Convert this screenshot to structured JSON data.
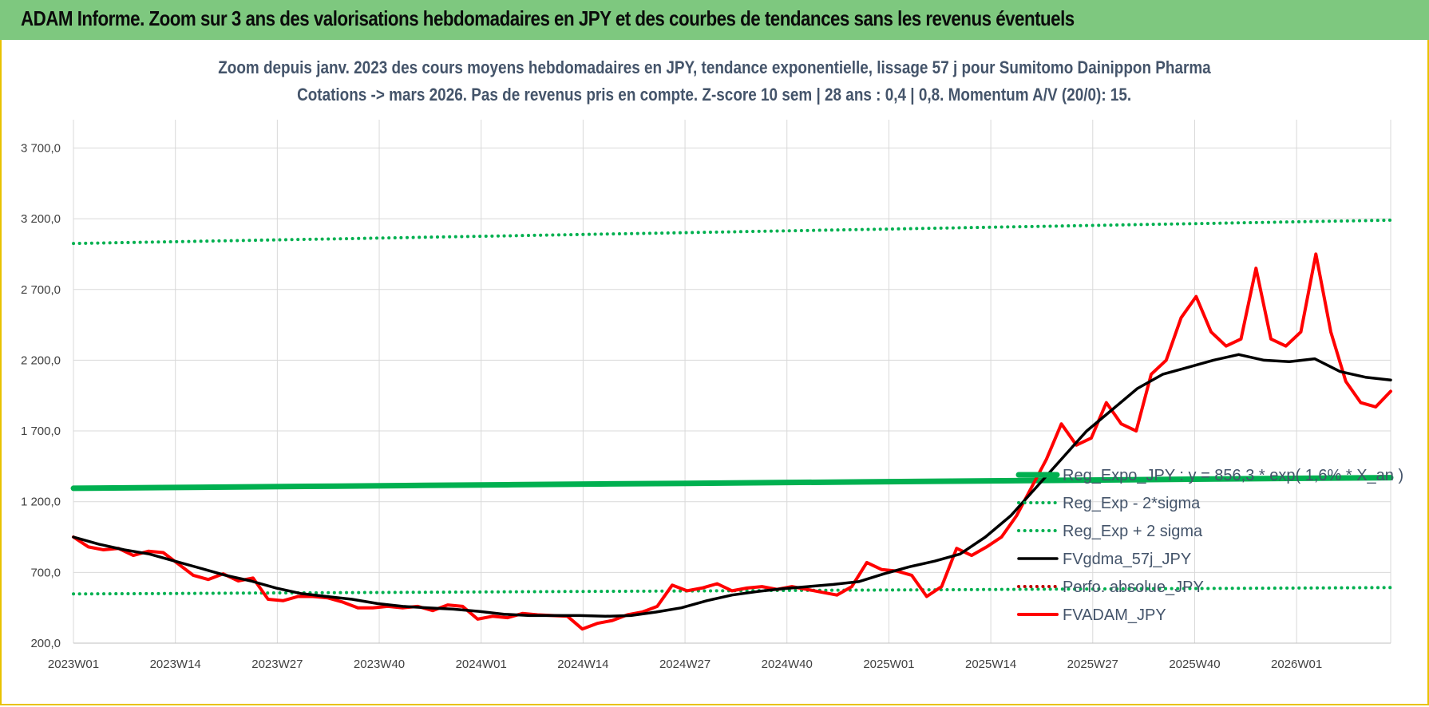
{
  "header": {
    "title": "ADAM Informe. Zoom sur 3 ans des valorisations hebdomadaires en JPY et des courbes de tendances sans les revenus éventuels"
  },
  "colors": {
    "banner": "#7ec87f",
    "trend": "#00b050",
    "smooth": "#000000",
    "price": "#ff0000",
    "perf": "#c00000"
  },
  "chart_data": {
    "type": "line",
    "title": "Zoom depuis janv. 2023 des cours moyens hebdomadaires en JPY, tendance exponentielle, lissage 57 j pour Sumitomo Dainippon Pharma",
    "subtitle": "Cotations -> mars 2026. Pas de revenus pris en compte. Z-score 10 sem | 28 ans : 0,4 | 0,8. Momentum A/V (20/0): 15.",
    "xlabel": "",
    "ylabel": "",
    "ylim": [
      200,
      3900
    ],
    "yticks": [
      200,
      700,
      1200,
      1700,
      2200,
      2700,
      3200,
      3700
    ],
    "ytick_labels": [
      "200,0",
      "700,0",
      "1 200,0",
      "1 700,0",
      "2 200,0",
      "2 700,0",
      "3 200,0",
      "3 700,0"
    ],
    "x_tick_labels": [
      "2023W01",
      "2023W14",
      "2023W27",
      "2023W40",
      "2024W01",
      "2024W14",
      "2024W27",
      "2024W40",
      "2025W01",
      "2025W14",
      "2025W27",
      "2025W40",
      "2026W01"
    ],
    "x_tick_steps": [
      0,
      13,
      26,
      39,
      52,
      65,
      78,
      91,
      104,
      117,
      130,
      143,
      156
    ],
    "n_points": 169,
    "grid": true,
    "legend_position": "right",
    "series": [
      {
        "name": "Reg_Expo_JPY : y = 856,3 * exp( 1,6% * X_an )",
        "style": "thick-green",
        "values": [
          1295,
          1300,
          1305,
          1310,
          1315,
          1320,
          1325,
          1330,
          1335,
          1340,
          1345,
          1350,
          1355,
          1360,
          1365,
          1370
        ]
      },
      {
        "name": "Reg_Exp - 2*sigma",
        "style": "dotted-green",
        "values": [
          548,
          551,
          554,
          557,
          560,
          563,
          566,
          569,
          572,
          575,
          578,
          581,
          584,
          587,
          590,
          593
        ]
      },
      {
        "name": "Reg_Exp + 2 sigma",
        "style": "dotted-green",
        "values": [
          3025,
          3036,
          3047,
          3058,
          3069,
          3080,
          3091,
          3102,
          3113,
          3124,
          3135,
          3146,
          3157,
          3168,
          3179,
          3190
        ]
      },
      {
        "name": "FVgdma_57j_JPY",
        "style": "black",
        "values": [
          950,
          900,
          860,
          830,
          780,
          730,
          680,
          640,
          590,
          550,
          530,
          510,
          480,
          460,
          450,
          440,
          425,
          405,
          395,
          395,
          395,
          390,
          395,
          420,
          450,
          500,
          540,
          565,
          585,
          600,
          615,
          635,
          690,
          740,
          780,
          830,
          950,
          1100,
          1300,
          1500,
          1700,
          1850,
          2000,
          2100,
          2150,
          2200,
          2240,
          2200,
          2190,
          2210,
          2120,
          2080,
          2060
        ]
      },
      {
        "name": "Perfo. absolue_JPY",
        "style": "dotted-darkred",
        "values": []
      },
      {
        "name": "FVADAM_JPY",
        "style": "red",
        "values": [
          950,
          880,
          860,
          870,
          820,
          850,
          840,
          760,
          680,
          650,
          690,
          640,
          660,
          510,
          500,
          530,
          530,
          520,
          490,
          450,
          450,
          460,
          450,
          460,
          430,
          470,
          460,
          370,
          390,
          380,
          410,
          400,
          395,
          390,
          300,
          340,
          360,
          400,
          420,
          460,
          610,
          570,
          590,
          620,
          570,
          590,
          600,
          580,
          600,
          580,
          560,
          540,
          600,
          770,
          720,
          710,
          680,
          530,
          600,
          870,
          820,
          880,
          950,
          1100,
          1300,
          1500,
          1750,
          1600,
          1650,
          1900,
          1750,
          1700,
          2100,
          2200,
          2500,
          2650,
          2400,
          2300,
          2350,
          2850,
          2350,
          2300,
          2400,
          2950,
          2400,
          2050,
          1900,
          1870,
          1980
        ]
      }
    ]
  }
}
